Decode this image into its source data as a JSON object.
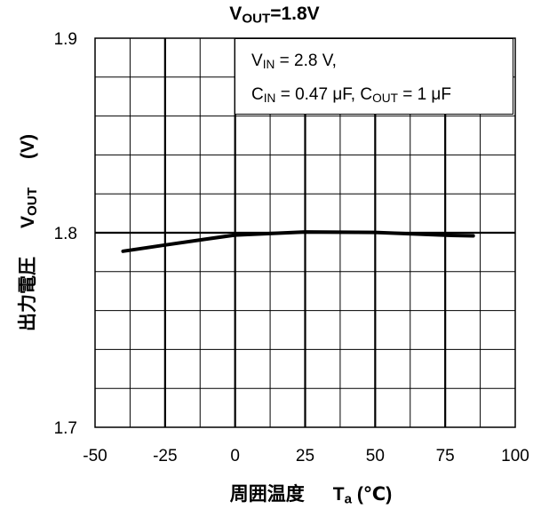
{
  "chart_data": {
    "type": "line",
    "title": {
      "main": "V",
      "sub": "OUT",
      "rest": "=1.8V"
    },
    "xlabel": {
      "jp": "周囲温度",
      "main": "T",
      "sub": "a",
      "rest": " (℃)"
    },
    "ylabel": {
      "jp": "出力電圧",
      "main": "V",
      "sub": "OUT",
      "rest": "(V)"
    },
    "annotation": {
      "line1": {
        "a": "V",
        "a_sub": "IN",
        "a_rest": " = 2.8 V,"
      },
      "line2": {
        "a": "C",
        "a_sub": "IN",
        "a_rest": " = 0.47 μF, ",
        "b": "C",
        "b_sub": "OUT",
        "b_rest": " = 1 μF"
      }
    },
    "xlim": [
      -50,
      100
    ],
    "ylim": [
      1.7,
      1.9
    ],
    "x_ticks": [
      -50,
      -25,
      0,
      25,
      50,
      75,
      100
    ],
    "x_tick_labels": [
      "-50",
      "-25",
      "0",
      "25",
      "50",
      "75",
      "100"
    ],
    "y_ticks": [
      1.7,
      1.8,
      1.9
    ],
    "y_tick_labels": [
      "1.7",
      "1.8",
      "1.9"
    ],
    "grid": true,
    "series": [
      {
        "x": [
          -40,
          -25,
          -10,
          0,
          25,
          50,
          75,
          85
        ],
        "y": [
          1.7905,
          1.7937,
          1.7968,
          1.7988,
          1.8004,
          1.8002,
          1.7987,
          1.7984
        ],
        "color": "#000000"
      }
    ]
  }
}
